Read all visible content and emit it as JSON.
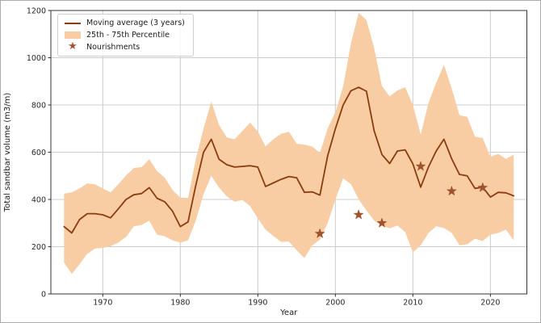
{
  "chart_data": {
    "type": "line",
    "title": "",
    "xlabel": "Year",
    "ylabel": "Total sandbar volume (m3/m)",
    "xlim": [
      1963.3,
      2024.7
    ],
    "ylim": [
      0,
      1200
    ],
    "x_ticks": [
      1970,
      1980,
      1990,
      2000,
      2010,
      2020
    ],
    "y_ticks": [
      0,
      200,
      400,
      600,
      800,
      1000,
      1200
    ],
    "grid": true,
    "legend_position": "upper left",
    "colors": {
      "line": "#8c3b0e",
      "band": "#f8cda3",
      "marker": "#a0522d",
      "grid": "#cccccc",
      "spine": "#333333"
    },
    "x": [
      1965,
      1966,
      1967,
      1968,
      1969,
      1970,
      1971,
      1972,
      1973,
      1974,
      1975,
      1976,
      1977,
      1978,
      1979,
      1980,
      1981,
      1982,
      1983,
      1984,
      1985,
      1986,
      1987,
      1988,
      1989,
      1990,
      1991,
      1992,
      1993,
      1994,
      1995,
      1996,
      1997,
      1998,
      1999,
      2000,
      2001,
      2002,
      2003,
      2004,
      2005,
      2006,
      2007,
      2008,
      2009,
      2010,
      2011,
      2012,
      2013,
      2014,
      2015,
      2016,
      2017,
      2018,
      2019,
      2020,
      2021,
      2022,
      2023
    ],
    "series": [
      {
        "name": "Moving average (3 years)",
        "type": "line",
        "values": [
          285,
          258,
          315,
          340,
          340,
          335,
          322,
          360,
          400,
          420,
          425,
          450,
          405,
          390,
          350,
          285,
          305,
          460,
          600,
          655,
          570,
          547,
          537,
          540,
          543,
          537,
          455,
          470,
          485,
          497,
          492,
          430,
          432,
          418,
          585,
          700,
          800,
          860,
          875,
          858,
          690,
          590,
          552,
          605,
          610,
          550,
          452,
          537,
          605,
          655,
          572,
          506,
          500,
          447,
          452,
          410,
          430,
          428,
          415
        ]
      },
      {
        "name": "25th - 75th Percentile",
        "type": "band",
        "upper": [
          425,
          430,
          447,
          468,
          464,
          447,
          430,
          464,
          502,
          533,
          537,
          570,
          520,
          492,
          440,
          408,
          406,
          571,
          700,
          815,
          715,
          662,
          655,
          690,
          725,
          688,
          625,
          655,
          678,
          687,
          636,
          632,
          624,
          598,
          700,
          770,
          880,
          1060,
          1190,
          1160,
          1040,
          880,
          836,
          862,
          875,
          800,
          675,
          808,
          894,
          970,
          870,
          757,
          750,
          666,
          660,
          580,
          593,
          572,
          590
        ],
        "lower": [
          133,
          85,
          125,
          170,
          192,
          195,
          202,
          217,
          241,
          286,
          292,
          310,
          251,
          244,
          227,
          217,
          227,
          310,
          423,
          500,
          450,
          413,
          390,
          398,
          372,
          320,
          272,
          245,
          220,
          222,
          185,
          152,
          205,
          230,
          300,
          400,
          490,
          465,
          400,
          354,
          310,
          288,
          278,
          290,
          262,
          176,
          206,
          258,
          286,
          279,
          258,
          206,
          210,
          234,
          224,
          251,
          258,
          272,
          227
        ]
      },
      {
        "name": "Nourishments",
        "type": "scatter-star",
        "points": [
          [
            1998,
            255
          ],
          [
            2003,
            335
          ],
          [
            2006,
            300
          ],
          [
            2011,
            540
          ],
          [
            2015,
            435
          ],
          [
            2019,
            450
          ]
        ]
      }
    ]
  }
}
